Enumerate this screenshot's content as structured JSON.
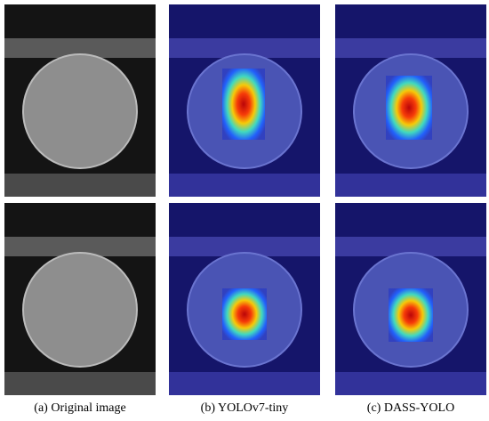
{
  "figure": {
    "captions": [
      "(a) Original image",
      "(b) YOLOv7-tiny",
      "(c) DASS-YOLO"
    ]
  }
}
